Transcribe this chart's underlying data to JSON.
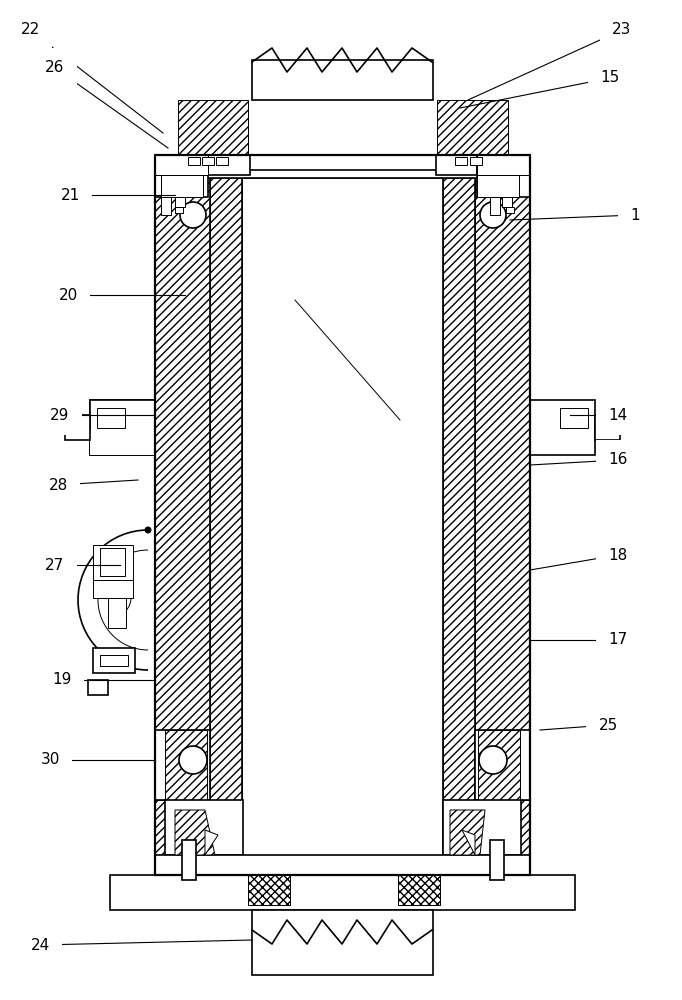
{
  "bg_color": "#ffffff",
  "figsize": [
    6.82,
    10.0
  ],
  "dpi": 100,
  "annotations": [
    [
      "22",
      163,
      133,
      30,
      30
    ],
    [
      "26",
      168,
      148,
      55,
      68
    ],
    [
      "21",
      175,
      195,
      70,
      195
    ],
    [
      "20",
      185,
      295,
      68,
      295
    ],
    [
      "29",
      155,
      415,
      60,
      415
    ],
    [
      "28",
      138,
      480,
      58,
      485
    ],
    [
      "27",
      120,
      565,
      55,
      565
    ],
    [
      "19",
      155,
      680,
      62,
      680
    ],
    [
      "30",
      155,
      760,
      50,
      760
    ],
    [
      "24",
      252,
      940,
      40,
      945
    ],
    [
      "1",
      510,
      220,
      635,
      215
    ],
    [
      "15",
      460,
      108,
      610,
      78
    ],
    [
      "23",
      468,
      100,
      622,
      30
    ],
    [
      "14",
      570,
      415,
      618,
      415
    ],
    [
      "16",
      530,
      465,
      618,
      460
    ],
    [
      "18",
      530,
      570,
      618,
      555
    ],
    [
      "17",
      530,
      640,
      618,
      640
    ],
    [
      "25",
      540,
      730,
      608,
      725
    ]
  ]
}
